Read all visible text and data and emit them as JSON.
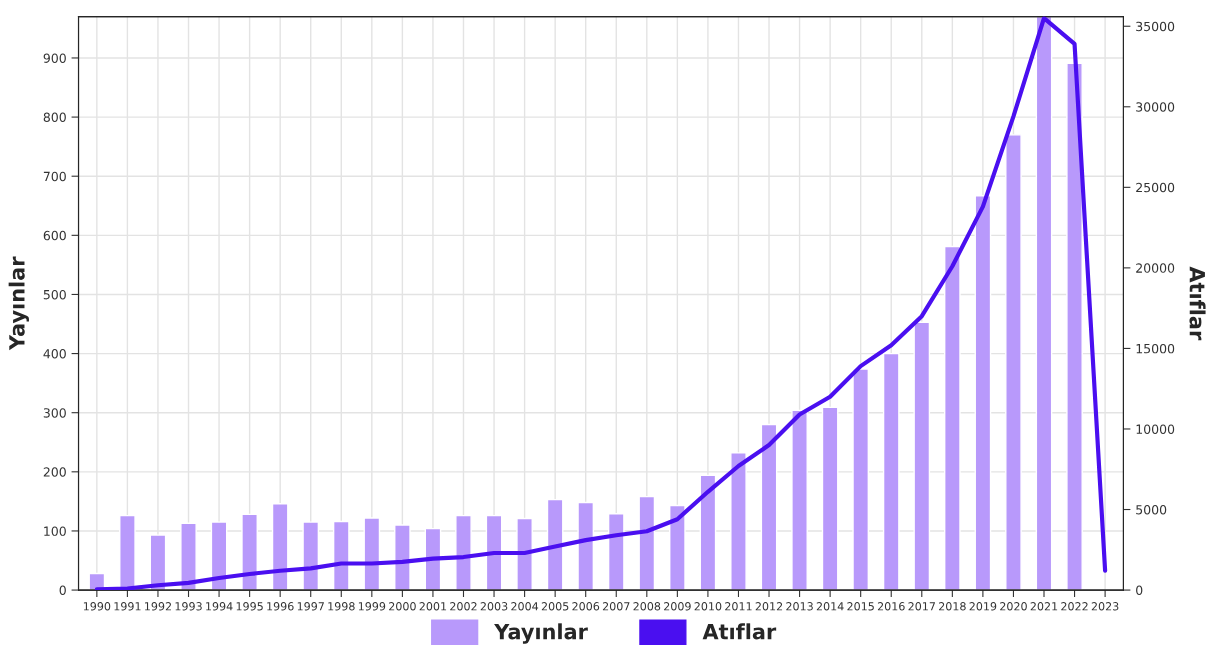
{
  "chart_data": {
    "type": "bar",
    "categories": [
      "1990",
      "1991",
      "1992",
      "1993",
      "1994",
      "1995",
      "1996",
      "1997",
      "1998",
      "1999",
      "2000",
      "2001",
      "2002",
      "2003",
      "2004",
      "2005",
      "2006",
      "2007",
      "2008",
      "2009",
      "2010",
      "2011",
      "2012",
      "2013",
      "2014",
      "2015",
      "2016",
      "2017",
      "2018",
      "2019",
      "2020",
      "2021",
      "2022",
      "2023"
    ],
    "series": [
      {
        "name": "Yayınlar",
        "color": "#b899fb",
        "values": [
          28,
          126,
          93,
          113,
          115,
          128,
          146,
          115,
          116,
          122,
          110,
          104,
          126,
          126,
          121,
          153,
          148,
          129,
          158,
          143,
          194,
          232,
          280,
          304,
          309,
          374,
          400,
          453,
          581,
          667,
          770,
          970,
          891,
          null
        ]
      },
      {
        "name": "Atıflar",
        "type": "line",
        "axis": "y2",
        "color": "#4a0ff0",
        "values": [
          50,
          100,
          300,
          450,
          750,
          1000,
          1200,
          1350,
          1650,
          1650,
          1750,
          1950,
          2050,
          2300,
          2300,
          2700,
          3100,
          3400,
          3650,
          4400,
          6100,
          7700,
          9000,
          10900,
          12000,
          13900,
          15200,
          17000,
          20100,
          23800,
          29400,
          35500,
          33900,
          1200
        ]
      }
    ],
    "ylabel": "Yayınlar",
    "y2label": "Atıflar",
    "ylim": [
      0,
      970
    ],
    "yticks": [
      0,
      100,
      200,
      300,
      400,
      500,
      600,
      700,
      800,
      900
    ],
    "y2lim": [
      0,
      35600
    ],
    "y2ticks": [
      0,
      5000,
      10000,
      15000,
      20000,
      25000,
      30000,
      35000
    ],
    "grid": true,
    "legend": "bottom",
    "marker": "none",
    "line_style": "solid"
  }
}
